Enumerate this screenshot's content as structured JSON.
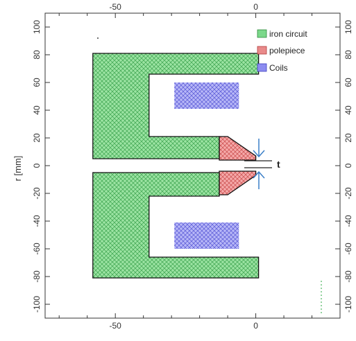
{
  "chart_data": {
    "type": "diagram",
    "xlabel": "",
    "ylabel": "r [mm]",
    "xlim": [
      -75,
      30
    ],
    "ylim": [
      -110,
      110
    ],
    "x_ticks": [
      -50,
      0
    ],
    "x_minor_step": 10,
    "y_ticks": [
      100,
      80,
      60,
      40,
      20,
      0,
      -20,
      -40,
      -60,
      -80,
      -100
    ],
    "grid": false,
    "legend": {
      "placement": "top-right",
      "entries": [
        {
          "label": "iron circuit",
          "color": "#7bd88a"
        },
        {
          "label": "polepiece",
          "color": "#e98a8a"
        },
        {
          "label": "Coils",
          "color": "#8c8cf0"
        }
      ]
    },
    "gap_label": "t",
    "regions": [
      {
        "name": "iron-circuit-upper",
        "kind": "iron",
        "points": [
          [
            -58,
            81
          ],
          [
            1,
            81
          ],
          [
            1,
            66
          ],
          [
            -38,
            66
          ],
          [
            -38,
            21
          ],
          [
            -13,
            21
          ],
          [
            -13,
            5
          ],
          [
            -58,
            5
          ]
        ]
      },
      {
        "name": "iron-circuit-lower",
        "kind": "iron",
        "points": [
          [
            -58,
            -5
          ],
          [
            -13,
            -5
          ],
          [
            -13,
            -22
          ],
          [
            -38,
            -22
          ],
          [
            -38,
            -66
          ],
          [
            1,
            -66
          ],
          [
            1,
            -81
          ],
          [
            -58,
            -81
          ]
        ]
      },
      {
        "name": "polepiece-upper",
        "kind": "pole",
        "points": [
          [
            -13,
            21
          ],
          [
            -10,
            21
          ],
          [
            0,
            7
          ],
          [
            0,
            4
          ],
          [
            -13,
            4
          ]
        ]
      },
      {
        "name": "polepiece-lower",
        "kind": "pole",
        "points": [
          [
            -13,
            -4
          ],
          [
            0,
            -4
          ],
          [
            0,
            -7
          ],
          [
            -10,
            -21
          ],
          [
            -13,
            -21
          ]
        ]
      },
      {
        "name": "coil-upper",
        "kind": "coil",
        "points": [
          [
            -29,
            60
          ],
          [
            -6,
            60
          ],
          [
            -6,
            41
          ],
          [
            -29,
            41
          ]
        ]
      },
      {
        "name": "coil-lower",
        "kind": "coil",
        "points": [
          [
            -29,
            -41
          ],
          [
            -6,
            -41
          ],
          [
            -6,
            -60
          ],
          [
            -29,
            -60
          ]
        ]
      }
    ]
  }
}
